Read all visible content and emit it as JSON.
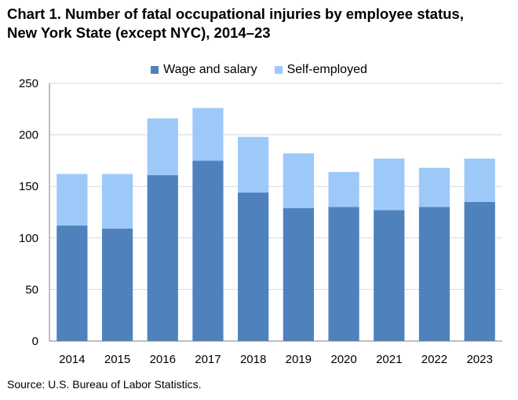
{
  "title_line1": "Chart 1. Number of fatal occupational injuries by employee status,",
  "title_line2": "New York State (except NYC), 2014–23",
  "source": "Source: U.S. Bureau of Labor Statistics.",
  "colors": {
    "wage": "#4f81bd",
    "self": "#9dc9f9",
    "axis": "#7f7f7f",
    "grid": "#d9d9d9"
  },
  "chart_data": {
    "type": "bar",
    "stacked": true,
    "categories": [
      "2014",
      "2015",
      "2016",
      "2017",
      "2018",
      "2019",
      "2020",
      "2021",
      "2022",
      "2023"
    ],
    "series": [
      {
        "name": "Wage and salary",
        "values": [
          112,
          109,
          161,
          175,
          144,
          129,
          130,
          127,
          130,
          135
        ]
      },
      {
        "name": "Self-employed",
        "values": [
          50,
          53,
          55,
          51,
          54,
          53,
          34,
          50,
          38,
          42
        ]
      }
    ],
    "ylim": [
      0,
      250
    ],
    "yticks": [
      0,
      50,
      100,
      150,
      200,
      250
    ],
    "grid": "horizontal",
    "legend": "top-center"
  }
}
